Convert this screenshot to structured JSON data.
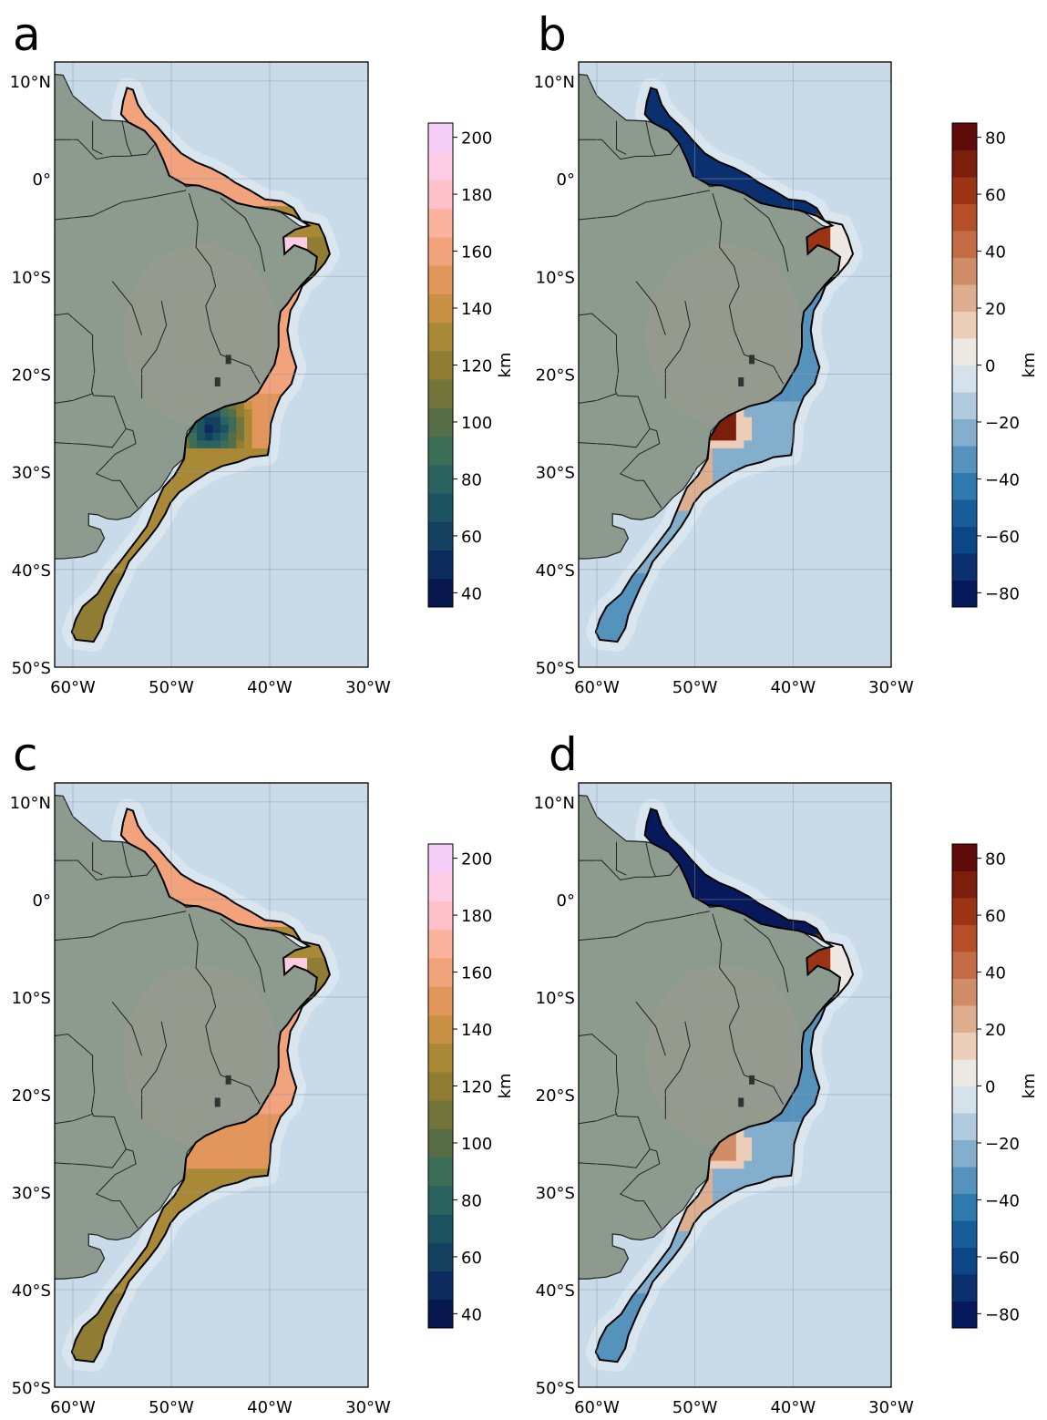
{
  "panels": [
    {
      "label": "a",
      "cmap": "sequential",
      "colorbar": {
        "unit": "km",
        "ticks": [
          "40",
          "60",
          "80",
          "100",
          "120",
          "140",
          "160",
          "180",
          "200"
        ],
        "min": 35,
        "max": 205
      }
    },
    {
      "label": "b",
      "cmap": "diverging",
      "colorbar": {
        "unit": "km",
        "ticks": [
          "−80",
          "−60",
          "−40",
          "−20",
          "0",
          "20",
          "40",
          "60",
          "80"
        ],
        "min": -85,
        "max": 85
      }
    },
    {
      "label": "c",
      "cmap": "sequential",
      "colorbar": {
        "unit": "km",
        "ticks": [
          "40",
          "60",
          "80",
          "100",
          "120",
          "140",
          "160",
          "180",
          "200"
        ],
        "min": 35,
        "max": 205
      }
    },
    {
      "label": "d",
      "cmap": "diverging",
      "colorbar": {
        "unit": "km",
        "ticks": [
          "−80",
          "−60",
          "−40",
          "−20",
          "0",
          "20",
          "40",
          "60",
          "80"
        ],
        "min": -85,
        "max": 85
      }
    }
  ],
  "lat_ticks": [
    "10°N",
    "0°",
    "10°S",
    "20°S",
    "30°S",
    "40°S",
    "50°S"
  ],
  "lon_ticks": [
    "60°W",
    "50°W",
    "40°W",
    "30°W"
  ],
  "colors": {
    "ocean": "#c9dae9",
    "land": "#8d9a8e",
    "border": "#222222",
    "sequential": [
      "#06174d",
      "#0b2a5e",
      "#14405f",
      "#1c5360",
      "#2a6360",
      "#3b6d57",
      "#566e46",
      "#74753b",
      "#907c33",
      "#a98836",
      "#c99044",
      "#e3965c",
      "#f2a37c",
      "#fbb39e",
      "#ffc0c9",
      "#ffcce6",
      "#f5ccf7"
    ],
    "diverging": [
      "#07195a",
      "#0a3070",
      "#0b4786",
      "#165d99",
      "#2e79ad",
      "#5593bd",
      "#83afcd",
      "#b0cbde",
      "#d4e2eb",
      "#eee8e3",
      "#ebcdb8",
      "#deaf8e",
      "#d18d68",
      "#c46c45",
      "#b44f27",
      "#9a3413",
      "#7b1f0c",
      "#5e0b09"
    ]
  }
}
